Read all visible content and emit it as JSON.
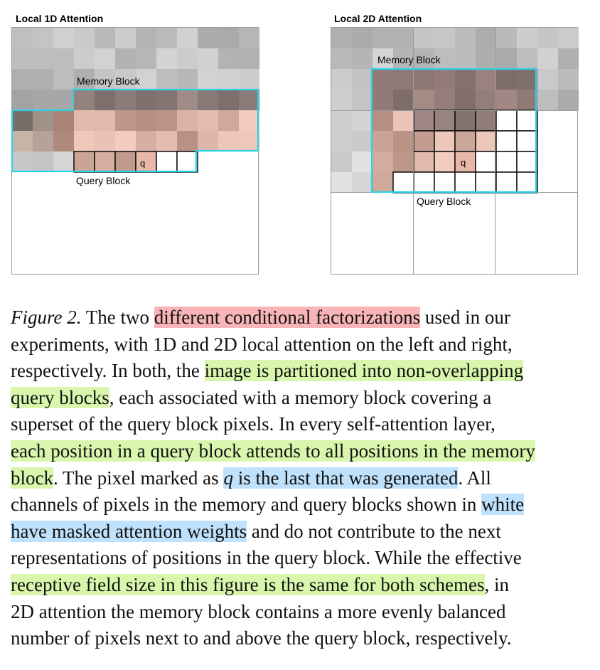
{
  "figure": {
    "left_panel": {
      "title": "Local 1D Attention",
      "memory_label": "Memory Block",
      "query_label": "Query Block",
      "q_label": "q"
    },
    "right_panel": {
      "title": "Local 2D Attention",
      "memory_label": "Memory Block",
      "query_label": "Query Block",
      "q_label": "q"
    },
    "colors": {
      "memory_outline": "#2ad2e6",
      "query_outline": "#000000",
      "frame": "#9a9a9a",
      "highlight_red": "#f8b4b7",
      "highlight_green": "#d8f7ad",
      "highlight_blue": "#bfe1fb"
    }
  },
  "caption": {
    "label": "Figure 2.",
    "s1a": " The two ",
    "s1_hl": "different conditional factorizations",
    "s1b": " used in our",
    "s2": "experiments, with 1D and 2D local attention on the left and right,",
    "s3a": "respectively. In both, the ",
    "s3_hl": "image is partitioned into non-overlapping",
    "s4_hl": "query blocks",
    "s4b": ", each associated with a memory block covering a",
    "s5": "superset of the query block pixels. In every self-attention layer,",
    "s6_hl": "each position in a query block attends to all positions in the memory",
    "s7_hl": "block",
    "s7b": ". The pixel marked as ",
    "s7_q": "q",
    "s7_hl2": " is the last that was generated",
    "s7c": ". All",
    "s8a": "channels of pixels in the memory and query blocks shown in ",
    "s8_hl": "white",
    "s9_hl": "have masked attention weights",
    "s9b": " and do not contribute to the next",
    "s10": "representations of positions in the query block. While the effective",
    "s11_hl": "receptive field size in this figure is the same for both schemes",
    "s11b": ", in",
    "s12": "2D attention the memory block contains a more evenly balanced",
    "s13": "number of pixels next to and above the query block, respectively."
  }
}
